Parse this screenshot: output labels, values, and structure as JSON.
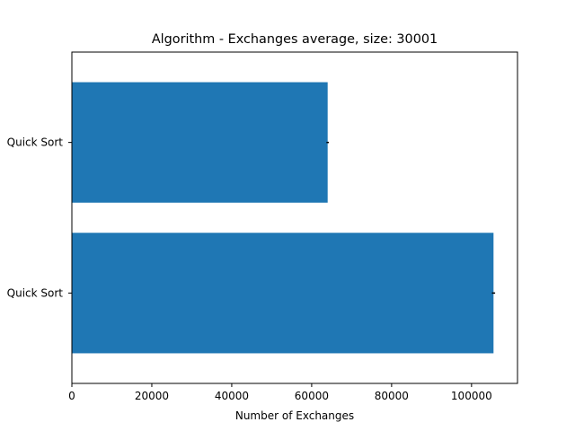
{
  "chart_data": {
    "type": "bar",
    "orientation": "horizontal",
    "title": "Algorithm - Exchanges average, size: 30001",
    "xlabel": "Number of Exchanges",
    "ylabel": "",
    "categories": [
      "Quick Sort",
      "Quick Sort"
    ],
    "values": [
      64000,
      105500
    ],
    "errors": [
      300,
      400
    ],
    "xlim": [
      0,
      111500
    ],
    "xticks": [
      0,
      20000,
      40000,
      60000,
      80000,
      100000
    ],
    "xtick_labels": [
      "0",
      "20000",
      "40000",
      "60000",
      "80000",
      "100000"
    ],
    "bar_color": "#1f77b4",
    "error_color": "#000000",
    "grid": false,
    "legend": "none"
  }
}
